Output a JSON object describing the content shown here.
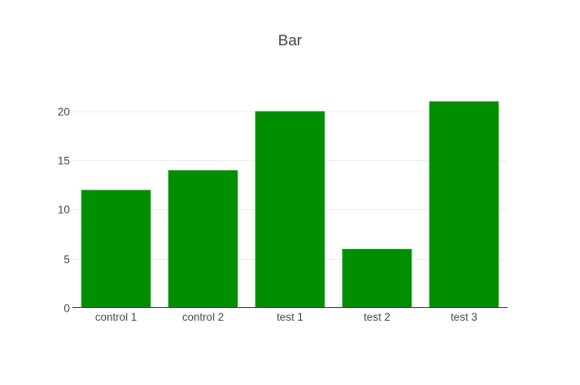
{
  "chart_data": {
    "type": "bar",
    "title": "Bar",
    "categories": [
      "control 1",
      "control 2",
      "test 1",
      "test 2",
      "test 3"
    ],
    "values": [
      12,
      14,
      20,
      6,
      21
    ],
    "xlabel": "",
    "ylabel": "",
    "ylim": [
      0,
      22.1
    ],
    "yticks": [
      0,
      5,
      10,
      15,
      20
    ],
    "grid": true,
    "legend": "none",
    "bar_color": "#008f00"
  }
}
